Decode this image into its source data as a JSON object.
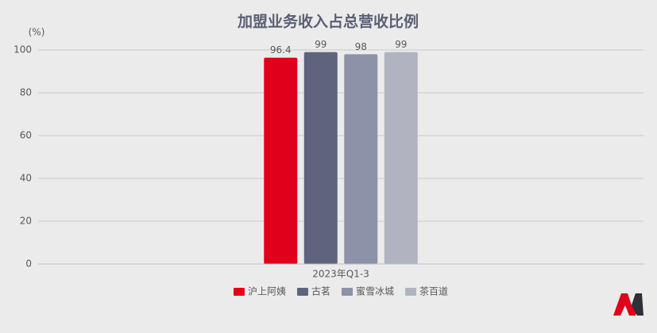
{
  "chart_data": {
    "type": "bar",
    "title": "加盟业务收入占总营收比例",
    "y_axis_label": "(%)",
    "categories": [
      "2023年Q1-3"
    ],
    "series": [
      {
        "name": "沪上阿姨",
        "color": "#e0001b",
        "values": [
          96.4
        ]
      },
      {
        "name": "古茗",
        "color": "#5f637e",
        "values": [
          99
        ]
      },
      {
        "name": "蜜雪冰城",
        "color": "#8e92a8",
        "values": [
          98
        ]
      },
      {
        "name": "茶百道",
        "color": "#b1b3c0",
        "values": [
          99
        ]
      }
    ],
    "ylim": [
      0,
      100
    ],
    "yticks": [
      0,
      20,
      40,
      60,
      80,
      100
    ],
    "grid": true,
    "legend": "bottom"
  }
}
